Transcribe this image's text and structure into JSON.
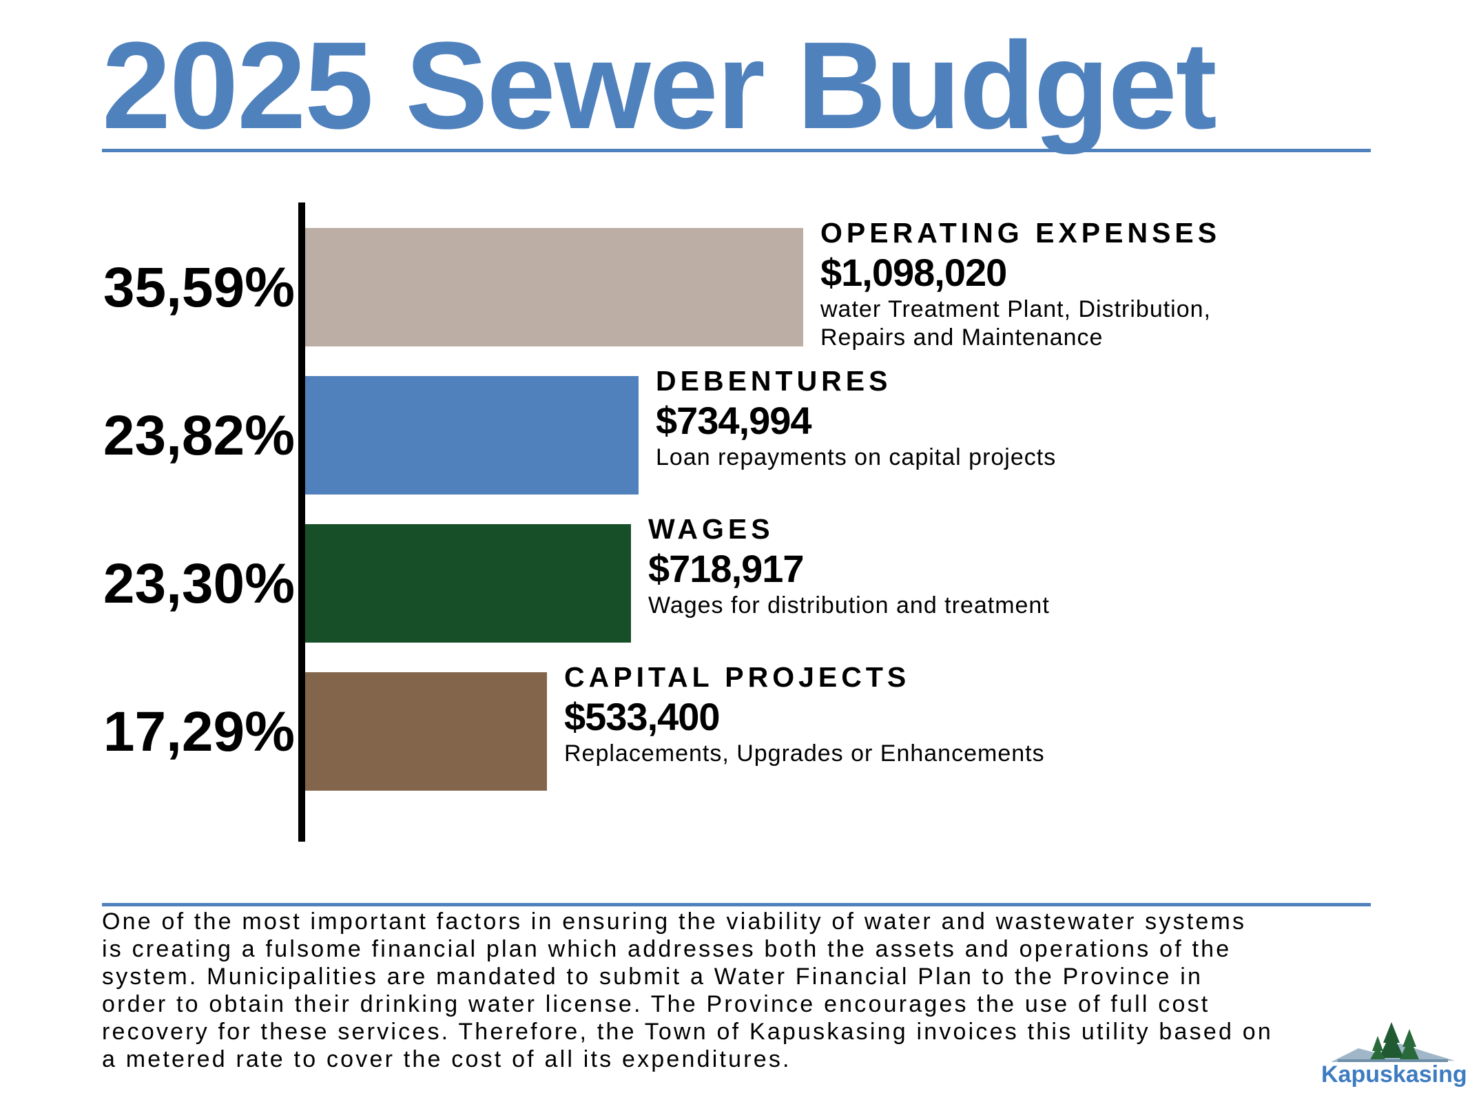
{
  "title": "2025 Sewer Budget",
  "chart_data": {
    "type": "bar",
    "orientation": "horizontal",
    "categories": [
      "OPERATING EXPENSES",
      "DEBENTURES",
      "WAGES",
      "CAPITAL PROJECTS"
    ],
    "percent_labels": [
      "35,59%",
      "23,82%",
      "23,30%",
      "17,29%"
    ],
    "amount_labels": [
      "$1,098,020",
      "$734,994",
      "$718,917",
      "$533,400"
    ],
    "values": [
      1098020,
      734994,
      718917,
      533400
    ],
    "percents": [
      35.59,
      23.82,
      23.3,
      17.29
    ],
    "descriptions": [
      [
        "water Treatment Plant, Distribution,",
        "Repairs and Maintenance"
      ],
      [
        "Loan repayments on capital projects"
      ],
      [
        "Wages for distribution and treatment"
      ],
      [
        "Replacements, Upgrades or Enhancements"
      ]
    ],
    "colors": [
      "#bcaea4",
      "#5181bc",
      "#175028",
      "#82654a"
    ],
    "grid": false,
    "legend": "none"
  },
  "footer_text": "One of the most important factors in ensuring the viability of water and wastewater systems is creating a fulsome financial plan which addresses both the assets and operations of the system. Municipalities are mandated to submit a Water Financial Plan to the Province in order to obtain their drinking water license. The Province encourages the use of full cost recovery for these services. Therefore, the Town of Kapuskasing invoices this utility based on a metered rate to cover the cost of all its expenditures.",
  "logo": {
    "text": "Kapuskasing",
    "icon": "tree-landscape-icon",
    "color": "#3d7cc1"
  }
}
